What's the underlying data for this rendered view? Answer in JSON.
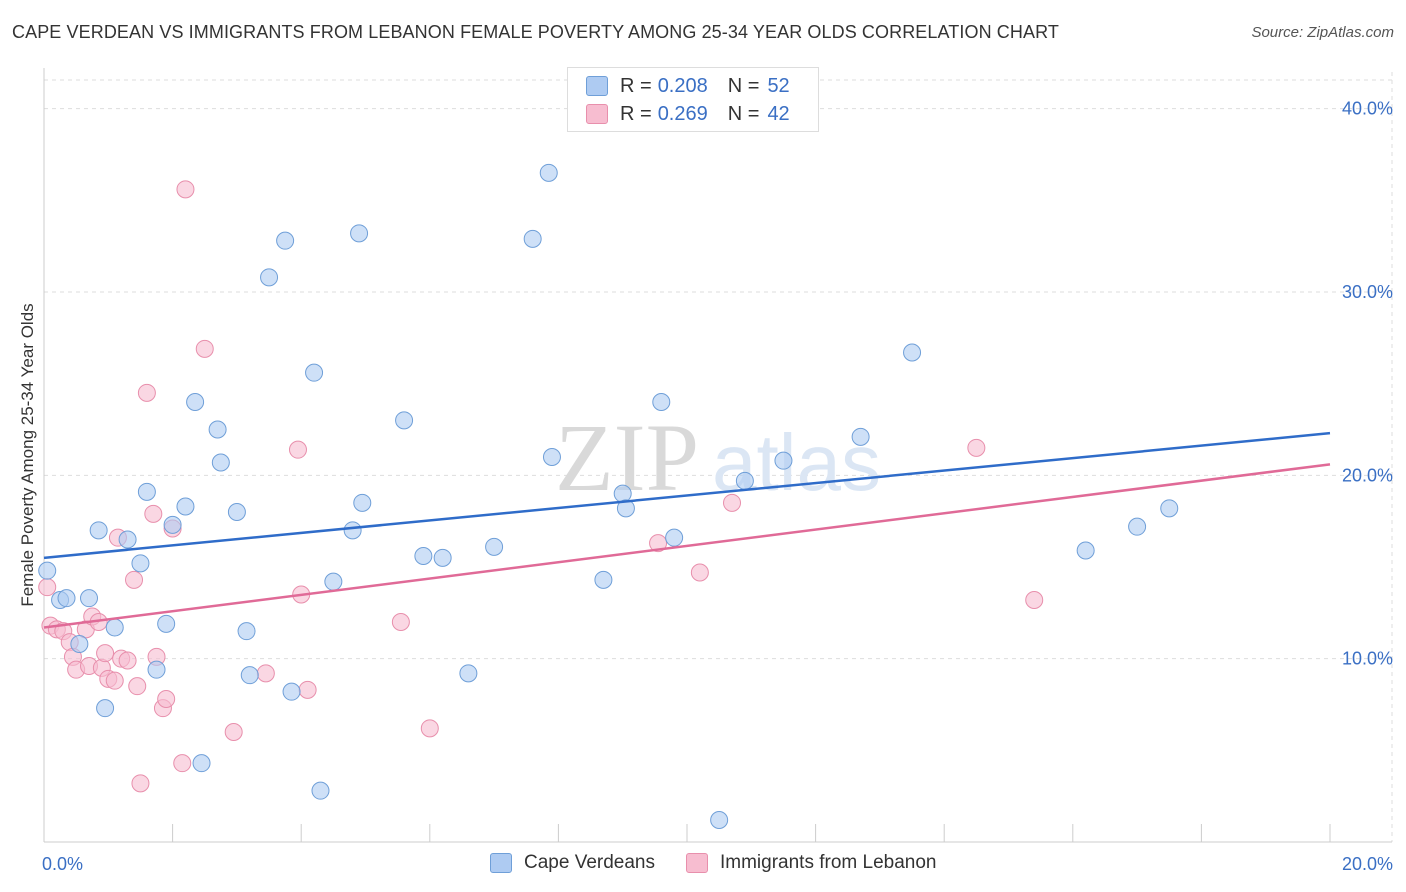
{
  "header": {
    "title": "CAPE VERDEAN VS IMMIGRANTS FROM LEBANON FEMALE POVERTY AMONG 25-34 YEAR OLDS CORRELATION CHART",
    "source": "Source: ZipAtlas.com"
  },
  "watermark": {
    "zip": "ZIP",
    "atlas": "atlas"
  },
  "legend_top": [
    {
      "r_label": "R =",
      "r_value": "0.208",
      "n_label": "N =",
      "n_value": "52"
    },
    {
      "r_label": "R =",
      "r_value": "0.269",
      "n_label": "N =",
      "n_value": "42"
    }
  ],
  "legend_bottom": [
    "Cape Verdeans",
    "Immigrants from Lebanon"
  ],
  "colors": {
    "blue_fill": "#aecbf2",
    "blue_stroke": "#6f9fd8",
    "blue_line": "#2f6cc9",
    "pink_fill": "#f7bdd0",
    "pink_stroke": "#e88fac",
    "pink_line": "#e06a97",
    "axis_text": "#3a6fc4",
    "grid": "#dddddd"
  },
  "chart_data": {
    "type": "scatter",
    "title": "CAPE VERDEAN VS IMMIGRANTS FROM LEBANON FEMALE POVERTY AMONG 25-34 YEAR OLDS CORRELATION CHART",
    "xlabel": "",
    "ylabel": "Female Poverty Among 25-34 Year Olds",
    "xlim": [
      0,
      20
    ],
    "ylim": [
      0,
      42
    ],
    "x_tick_labels": [
      "0.0%",
      "20.0%"
    ],
    "y_tick_labels": [
      "10.0%",
      "20.0%",
      "30.0%",
      "40.0%"
    ],
    "y_ticks": [
      10,
      20,
      30,
      40
    ],
    "grid": true,
    "legend_position": "top-center",
    "series": [
      {
        "name": "Cape Verdeans",
        "R": 0.208,
        "N": 52,
        "trend": {
          "x": [
            0,
            20
          ],
          "y": [
            15.5,
            22.3
          ]
        },
        "points": [
          [
            0.05,
            14.8
          ],
          [
            0.25,
            13.2
          ],
          [
            0.35,
            13.3
          ],
          [
            0.55,
            10.8
          ],
          [
            0.7,
            13.3
          ],
          [
            0.85,
            17.0
          ],
          [
            0.95,
            7.3
          ],
          [
            1.1,
            11.7
          ],
          [
            1.3,
            16.5
          ],
          [
            1.5,
            15.2
          ],
          [
            1.6,
            19.1
          ],
          [
            1.75,
            9.4
          ],
          [
            1.9,
            11.9
          ],
          [
            2.0,
            17.3
          ],
          [
            2.2,
            18.3
          ],
          [
            2.35,
            24.0
          ],
          [
            2.45,
            4.3
          ],
          [
            2.7,
            22.5
          ],
          [
            2.75,
            20.7
          ],
          [
            3.0,
            18.0
          ],
          [
            3.15,
            11.5
          ],
          [
            3.2,
            9.1
          ],
          [
            3.5,
            30.8
          ],
          [
            3.75,
            32.8
          ],
          [
            3.85,
            8.2
          ],
          [
            4.2,
            25.6
          ],
          [
            4.3,
            2.8
          ],
          [
            4.5,
            14.2
          ],
          [
            4.8,
            17.0
          ],
          [
            4.9,
            33.2
          ],
          [
            4.95,
            18.5
          ],
          [
            5.6,
            23.0
          ],
          [
            5.9,
            15.6
          ],
          [
            6.2,
            15.5
          ],
          [
            6.6,
            9.2
          ],
          [
            7.0,
            16.1
          ],
          [
            7.6,
            32.9
          ],
          [
            7.85,
            36.5
          ],
          [
            7.9,
            21.0
          ],
          [
            8.7,
            14.3
          ],
          [
            9.0,
            19.0
          ],
          [
            9.05,
            18.2
          ],
          [
            9.6,
            24.0
          ],
          [
            9.8,
            16.6
          ],
          [
            10.5,
            1.2
          ],
          [
            10.9,
            19.7
          ],
          [
            11.5,
            20.8
          ],
          [
            12.7,
            22.1
          ],
          [
            13.5,
            26.7
          ],
          [
            16.2,
            15.9
          ],
          [
            17.0,
            17.2
          ],
          [
            17.5,
            18.2
          ]
        ]
      },
      {
        "name": "Immigrants from Lebanon",
        "R": 0.269,
        "N": 42,
        "trend": {
          "x": [
            0,
            20
          ],
          "y": [
            11.7,
            20.6
          ]
        },
        "points": [
          [
            0.05,
            13.9
          ],
          [
            0.1,
            11.8
          ],
          [
            0.2,
            11.6
          ],
          [
            0.3,
            11.5
          ],
          [
            0.4,
            10.9
          ],
          [
            0.45,
            10.1
          ],
          [
            0.5,
            9.4
          ],
          [
            0.65,
            11.6
          ],
          [
            0.7,
            9.6
          ],
          [
            0.75,
            12.3
          ],
          [
            0.85,
            12.0
          ],
          [
            0.9,
            9.5
          ],
          [
            0.95,
            10.3
          ],
          [
            1.0,
            8.9
          ],
          [
            1.1,
            8.8
          ],
          [
            1.15,
            16.6
          ],
          [
            1.2,
            10.0
          ],
          [
            1.3,
            9.9
          ],
          [
            1.4,
            14.3
          ],
          [
            1.45,
            8.5
          ],
          [
            1.5,
            3.2
          ],
          [
            1.6,
            24.5
          ],
          [
            1.7,
            17.9
          ],
          [
            1.75,
            10.1
          ],
          [
            1.85,
            7.3
          ],
          [
            1.9,
            7.8
          ],
          [
            2.0,
            17.1
          ],
          [
            2.15,
            4.3
          ],
          [
            2.2,
            35.6
          ],
          [
            2.5,
            26.9
          ],
          [
            2.95,
            6.0
          ],
          [
            3.45,
            9.2
          ],
          [
            3.95,
            21.4
          ],
          [
            4.0,
            13.5
          ],
          [
            4.1,
            8.3
          ],
          [
            5.55,
            12.0
          ],
          [
            9.55,
            16.3
          ],
          [
            10.2,
            14.7
          ],
          [
            10.7,
            18.5
          ],
          [
            14.5,
            21.5
          ],
          [
            15.4,
            13.2
          ],
          [
            6.0,
            6.2
          ]
        ]
      }
    ]
  }
}
